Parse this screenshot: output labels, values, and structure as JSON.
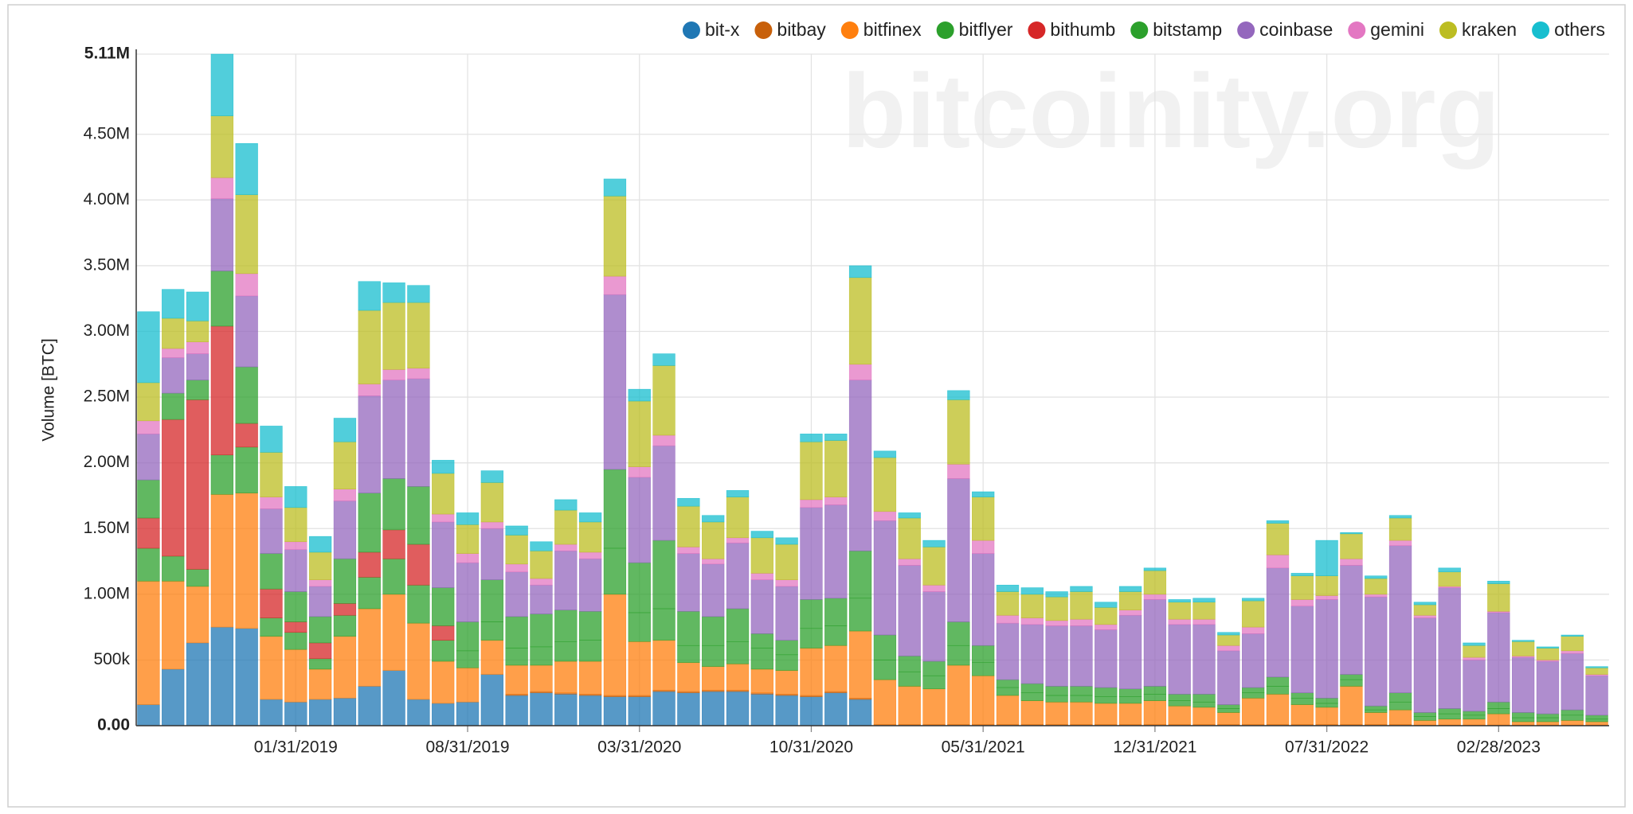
{
  "chart_data": {
    "type": "bar",
    "stacked": true,
    "watermark": "bitcoinity.org",
    "y_label": "Volume [BTC]",
    "grid": true,
    "legend_position": "top-right",
    "bar_opacity": 0.75,
    "categories": [
      null,
      null,
      null,
      null,
      null,
      null,
      "01/31/2019",
      null,
      null,
      null,
      null,
      null,
      null,
      "08/31/2019",
      null,
      null,
      null,
      null,
      null,
      null,
      "03/31/2020",
      null,
      null,
      null,
      null,
      null,
      null,
      "10/31/2020",
      null,
      null,
      null,
      null,
      null,
      null,
      "05/31/2021",
      null,
      null,
      null,
      null,
      null,
      null,
      "12/31/2021",
      null,
      null,
      null,
      null,
      null,
      null,
      "07/31/2022",
      null,
      null,
      null,
      null,
      null,
      null,
      "02/28/2023",
      null,
      null,
      null,
      null
    ],
    "ylim": [
      0,
      5110000
    ],
    "yticks": [
      {
        "value": 0,
        "label": "0.00"
      },
      {
        "value": 500000,
        "label": "500k"
      },
      {
        "value": 1000000,
        "label": "1.00M"
      },
      {
        "value": 1500000,
        "label": "1.50M"
      },
      {
        "value": 2000000,
        "label": "2.00M"
      },
      {
        "value": 2500000,
        "label": "2.50M"
      },
      {
        "value": 3000000,
        "label": "3.00M"
      },
      {
        "value": 3500000,
        "label": "3.50M"
      },
      {
        "value": 4000000,
        "label": "4.00M"
      },
      {
        "value": 4500000,
        "label": "4.50M"
      },
      {
        "value": 5110000,
        "label": "5.11M"
      }
    ],
    "series": [
      {
        "name": "bit-x",
        "color": "#1f77b4",
        "values": [
          160000,
          430000,
          630000,
          750000,
          740000,
          200000,
          180000,
          200000,
          210000,
          300000,
          420000,
          200000,
          170000,
          180000,
          390000,
          230000,
          250000,
          240000,
          230000,
          220000,
          220000,
          260000,
          250000,
          260000,
          260000,
          240000,
          230000,
          220000,
          250000,
          200000,
          0,
          0,
          0,
          0,
          0,
          0,
          0,
          0,
          0,
          0,
          0,
          0,
          0,
          0,
          0,
          0,
          0,
          0,
          0,
          0,
          0,
          0,
          0,
          0,
          0,
          0,
          0,
          0,
          0,
          0
        ]
      },
      {
        "name": "bitbay",
        "color": "#c8600a",
        "values": [
          0,
          0,
          0,
          0,
          0,
          0,
          0,
          0,
          0,
          0,
          0,
          0,
          0,
          0,
          0,
          10000,
          10000,
          10000,
          10000,
          10000,
          10000,
          10000,
          10000,
          10000,
          10000,
          10000,
          10000,
          10000,
          10000,
          10000,
          10000,
          10000,
          10000,
          10000,
          10000,
          10000,
          10000,
          10000,
          10000,
          10000,
          10000,
          10000,
          10000,
          10000,
          10000,
          10000,
          10000,
          10000,
          10000,
          10000,
          10000,
          10000,
          5000,
          5000,
          5000,
          5000,
          5000,
          5000,
          5000,
          5000
        ]
      },
      {
        "name": "bitfinex",
        "color": "#ff7f0e",
        "values": [
          940000,
          670000,
          430000,
          1010000,
          1030000,
          480000,
          400000,
          230000,
          470000,
          590000,
          580000,
          580000,
          320000,
          260000,
          260000,
          220000,
          200000,
          240000,
          250000,
          770000,
          410000,
          380000,
          220000,
          180000,
          200000,
          180000,
          180000,
          360000,
          350000,
          510000,
          340000,
          290000,
          270000,
          450000,
          370000,
          220000,
          180000,
          170000,
          170000,
          160000,
          160000,
          180000,
          140000,
          130000,
          90000,
          200000,
          230000,
          150000,
          130000,
          290000,
          90000,
          110000,
          35000,
          45000,
          45000,
          85000,
          25000,
          25000,
          35000,
          25000
        ]
      },
      {
        "name": "bitflyer",
        "color": "#2ca02c",
        "values": [
          250000,
          190000,
          130000,
          300000,
          350000,
          140000,
          130000,
          80000,
          160000,
          240000,
          270000,
          290000,
          160000,
          130000,
          140000,
          130000,
          140000,
          150000,
          160000,
          350000,
          220000,
          240000,
          130000,
          160000,
          170000,
          160000,
          120000,
          150000,
          150000,
          250000,
          150000,
          110000,
          100000,
          150000,
          100000,
          60000,
          60000,
          50000,
          50000,
          50000,
          50000,
          50000,
          40000,
          40000,
          30000,
          40000,
          60000,
          50000,
          30000,
          50000,
          20000,
          60000,
          30000,
          40000,
          30000,
          40000,
          30000,
          30000,
          40000,
          20000
        ]
      },
      {
        "name": "bithumb",
        "color": "#d62728",
        "values": [
          230000,
          1040000,
          1290000,
          980000,
          180000,
          220000,
          80000,
          120000,
          90000,
          190000,
          220000,
          310000,
          110000,
          0,
          0,
          0,
          0,
          0,
          0,
          0,
          0,
          0,
          0,
          0,
          0,
          0,
          0,
          0,
          0,
          0,
          0,
          0,
          0,
          0,
          0,
          0,
          0,
          0,
          0,
          0,
          0,
          0,
          0,
          0,
          0,
          0,
          0,
          0,
          0,
          0,
          0,
          0,
          0,
          0,
          0,
          0,
          0,
          0,
          0,
          0
        ]
      },
      {
        "name": "bitstamp",
        "color": "#2ca02c",
        "values": [
          290000,
          200000,
          150000,
          420000,
          430000,
          270000,
          230000,
          200000,
          340000,
          450000,
          390000,
          440000,
          290000,
          220000,
          320000,
          240000,
          250000,
          240000,
          220000,
          600000,
          380000,
          520000,
          260000,
          220000,
          250000,
          110000,
          110000,
          220000,
          210000,
          360000,
          190000,
          120000,
          110000,
          180000,
          130000,
          60000,
          70000,
          70000,
          70000,
          70000,
          60000,
          60000,
          50000,
          60000,
          30000,
          40000,
          70000,
          40000,
          40000,
          40000,
          30000,
          70000,
          30000,
          40000,
          30000,
          50000,
          40000,
          30000,
          40000,
          30000
        ]
      },
      {
        "name": "coinbase",
        "color": "#9467bd",
        "values": [
          350000,
          270000,
          200000,
          550000,
          540000,
          340000,
          320000,
          230000,
          440000,
          740000,
          750000,
          820000,
          500000,
          450000,
          390000,
          340000,
          220000,
          450000,
          400000,
          1330000,
          650000,
          720000,
          440000,
          400000,
          500000,
          410000,
          410000,
          700000,
          710000,
          1300000,
          870000,
          690000,
          530000,
          1090000,
          700000,
          430000,
          450000,
          460000,
          460000,
          440000,
          560000,
          660000,
          530000,
          530000,
          410000,
          410000,
          830000,
          660000,
          750000,
          830000,
          830000,
          1120000,
          720000,
          920000,
          390000,
          680000,
          420000,
          400000,
          430000,
          300000
        ]
      },
      {
        "name": "gemini",
        "color": "#e377c2",
        "values": [
          100000,
          70000,
          90000,
          160000,
          170000,
          90000,
          60000,
          50000,
          90000,
          90000,
          80000,
          80000,
          60000,
          70000,
          50000,
          60000,
          50000,
          50000,
          50000,
          140000,
          80000,
          80000,
          50000,
          40000,
          40000,
          50000,
          50000,
          60000,
          60000,
          120000,
          70000,
          50000,
          50000,
          110000,
          100000,
          60000,
          50000,
          40000,
          50000,
          40000,
          40000,
          40000,
          40000,
          40000,
          40000,
          50000,
          100000,
          50000,
          30000,
          50000,
          20000,
          40000,
          20000,
          10000,
          20000,
          10000,
          10000,
          10000,
          20000,
          10000
        ]
      },
      {
        "name": "kraken",
        "color": "#bcbd22",
        "values": [
          290000,
          230000,
          160000,
          470000,
          600000,
          340000,
          260000,
          210000,
          360000,
          560000,
          510000,
          500000,
          310000,
          220000,
          300000,
          220000,
          210000,
          260000,
          230000,
          610000,
          500000,
          530000,
          310000,
          280000,
          310000,
          270000,
          270000,
          440000,
          430000,
          660000,
          410000,
          310000,
          290000,
          490000,
          330000,
          180000,
          180000,
          180000,
          210000,
          130000,
          140000,
          180000,
          130000,
          130000,
          80000,
          200000,
          240000,
          180000,
          150000,
          190000,
          120000,
          170000,
          80000,
          110000,
          90000,
          210000,
          110000,
          90000,
          110000,
          50000
        ]
      },
      {
        "name": "others",
        "color": "#17becf",
        "values": [
          540000,
          220000,
          220000,
          470000,
          390000,
          200000,
          160000,
          120000,
          180000,
          220000,
          150000,
          130000,
          100000,
          90000,
          90000,
          70000,
          70000,
          80000,
          70000,
          130000,
          90000,
          90000,
          60000,
          50000,
          50000,
          50000,
          50000,
          60000,
          50000,
          90000,
          50000,
          40000,
          50000,
          70000,
          40000,
          50000,
          50000,
          40000,
          40000,
          40000,
          40000,
          20000,
          20000,
          30000,
          20000,
          20000,
          20000,
          20000,
          270000,
          10000,
          20000,
          20000,
          20000,
          30000,
          20000,
          20000,
          10000,
          10000,
          10000,
          10000
        ]
      }
    ]
  }
}
